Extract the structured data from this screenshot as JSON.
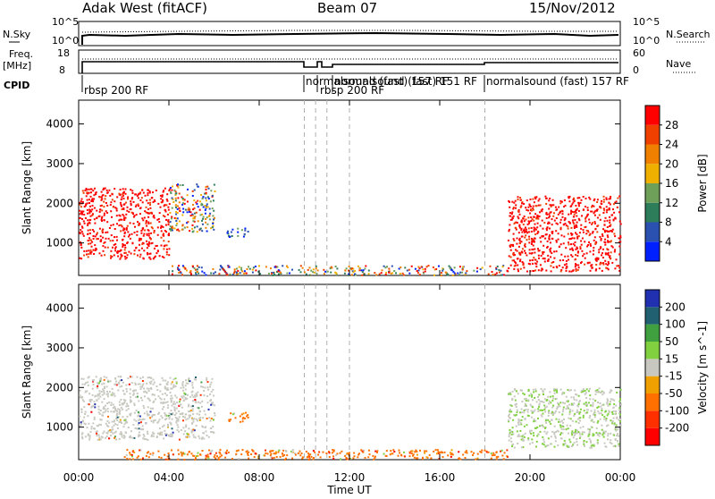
{
  "header": {
    "site": "Adak West (fitACF)",
    "beam": "Beam 07",
    "date": "15/Nov/2012"
  },
  "strip_nsky": {
    "label": "N.Sky",
    "right_label": "N.Search",
    "left_ticks": [
      "10^5",
      "10^0"
    ],
    "right_ticks": [
      "10^5",
      "10^0"
    ]
  },
  "strip_freq": {
    "label_1": "Freq.",
    "label_2": "[MHz]",
    "right_label": "Nave",
    "left_ticks": [
      "18",
      "8"
    ],
    "right_ticks": [
      "60",
      "0"
    ]
  },
  "cpid": {
    "label": "CPID",
    "segments": [
      {
        "text": "rbsp 200 RF"
      },
      {
        "text": "normalsound (fast) 157 RF"
      },
      {
        "text": "rbsp 200 RF"
      },
      {
        "text": "normalsound (fast) 151 RF"
      },
      {
        "text": "normalsound (fast) 157 RF"
      }
    ]
  },
  "colors": {
    "power": [
      "#0020ff",
      "#2a50b0",
      "#2e7d5a",
      "#6fa05a",
      "#f0b000",
      "#f08000",
      "#f04000",
      "#ff0000"
    ],
    "velocity": [
      "#ff0000",
      "#ff3000",
      "#ff7000",
      "#f0a000",
      "#c8c8c0",
      "#80d040",
      "#40a040",
      "#206070",
      "#2030b0"
    ],
    "ground_scatter": "#c0c0b8"
  },
  "chart_data": [
    {
      "type": "heatmap",
      "title": "Power",
      "xlabel": "",
      "ylabel": "Slant Range [km]",
      "x_ticks": [
        "00:00",
        "04:00",
        "08:00",
        "12:00",
        "16:00",
        "20:00",
        "00:00"
      ],
      "xlim_hours": [
        0,
        24
      ],
      "ylim": [
        180,
        4600
      ],
      "y_ticks": [
        1000,
        2000,
        3000,
        4000
      ],
      "colorbar": {
        "label": "Power [dB]",
        "ticks": [
          4,
          8,
          12,
          16,
          20,
          24,
          28
        ],
        "range": [
          0,
          32
        ]
      },
      "regions": [
        {
          "name": "evening-scatter",
          "t_start": 0.0,
          "t_end": 4.0,
          "r_low": 600,
          "r_high": 2400,
          "level": "red"
        },
        {
          "name": "upper-echoes",
          "t_start": 4.0,
          "t_end": 6.0,
          "r_low": 1300,
          "r_high": 2500,
          "level": "mixed"
        },
        {
          "name": "isolated-patch",
          "t_start": 6.5,
          "t_end": 7.5,
          "r_low": 1150,
          "r_high": 1400,
          "level": "blue-green"
        },
        {
          "name": "near-range",
          "t_start": 4.0,
          "t_end": 19.0,
          "r_low": 200,
          "r_high": 450,
          "level": "mixed"
        },
        {
          "name": "morning-scatter",
          "t_start": 19.0,
          "t_end": 24.0,
          "r_low": 300,
          "r_high": 2200,
          "level": "red"
        }
      ]
    },
    {
      "type": "heatmap",
      "title": "Velocity",
      "xlabel": "Time UT",
      "ylabel": "Slant Range [km]",
      "x_ticks": [
        "00:00",
        "04:00",
        "08:00",
        "12:00",
        "16:00",
        "20:00",
        "00:00"
      ],
      "xlim_hours": [
        0,
        24
      ],
      "ylim": [
        180,
        4600
      ],
      "y_ticks": [
        1000,
        2000,
        3000,
        4000
      ],
      "colorbar": {
        "label": "Velocity [m s^-1]",
        "ticks": [
          200,
          100,
          50,
          15,
          -15,
          -50,
          -100,
          -200
        ]
      },
      "regions": [
        {
          "name": "ground-scatter-evening",
          "t_start": 0.0,
          "t_end": 6.0,
          "r_low": 700,
          "r_high": 2300,
          "velocity": 0
        },
        {
          "name": "orange-patch",
          "t_start": 6.5,
          "t_end": 7.5,
          "r_low": 1150,
          "r_high": 1400,
          "velocity": -70
        },
        {
          "name": "near-range",
          "t_start": 2.0,
          "t_end": 19.0,
          "r_low": 200,
          "r_high": 450,
          "velocity": -60
        },
        {
          "name": "ground-scatter-morning",
          "t_start": 19.0,
          "t_end": 24.0,
          "r_low": 500,
          "r_high": 2000,
          "velocity": 10
        }
      ]
    }
  ]
}
